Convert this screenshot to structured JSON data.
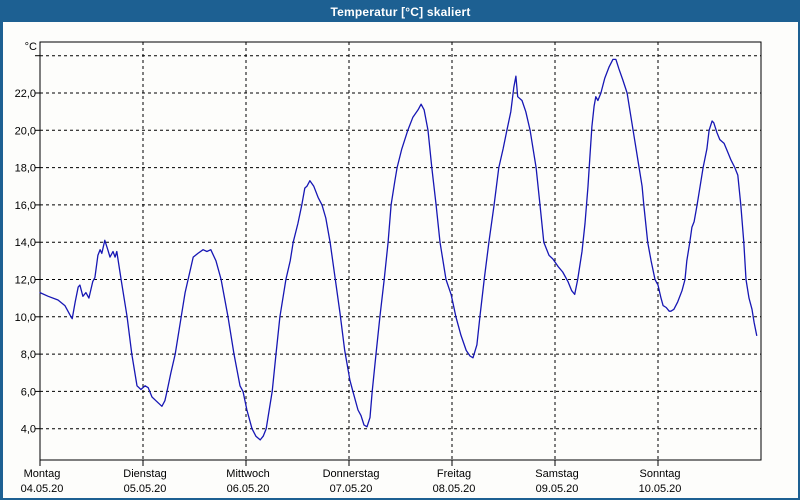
{
  "window": {
    "title": "Temperatur [°C] skaliert",
    "titlebar_color": "#1d6092",
    "border_color": "#1d6092",
    "background_color": "#fdfdfb"
  },
  "chart_data": {
    "type": "line",
    "title": "Temperatur [°C] skaliert",
    "unit_label": "°C",
    "line_color": "#1717b4",
    "grid": true,
    "grid_style": "dashed",
    "legend_position": "none",
    "y_axis": {
      "decimal_format": "comma",
      "ticks": [
        {
          "value": 24,
          "label": ""
        },
        {
          "value": 22,
          "label": "22,0"
        },
        {
          "value": 20,
          "label": "20,0"
        },
        {
          "value": 18,
          "label": "18,0"
        },
        {
          "value": 16,
          "label": "16,0"
        },
        {
          "value": 14,
          "label": "14,0"
        },
        {
          "value": 12,
          "label": "12,0"
        },
        {
          "value": 10,
          "label": "10,0"
        },
        {
          "value": 8,
          "label": "8,0"
        },
        {
          "value": 6,
          "label": "6,0"
        },
        {
          "value": 4,
          "label": "4,0"
        }
      ],
      "visible_range": [
        2.4,
        24.8
      ]
    },
    "x_axis": {
      "unit": "hours_from_monday_00",
      "range_hours": [
        0,
        168
      ],
      "days": [
        {
          "name": "Montag",
          "date": "04.05.20"
        },
        {
          "name": "Dienstag",
          "date": "05.05.20"
        },
        {
          "name": "Mittwoch",
          "date": "06.05.20"
        },
        {
          "name": "Donnerstag",
          "date": "07.05.20"
        },
        {
          "name": "Freitag",
          "date": "08.05.20"
        },
        {
          "name": "Samstag",
          "date": "09.05.20"
        },
        {
          "name": "Sonntag",
          "date": "10.05.20"
        }
      ]
    },
    "series": [
      {
        "name": "Temperatur",
        "points": [
          [
            0,
            11.3
          ],
          [
            1.9,
            11.1
          ],
          [
            4.2,
            10.9
          ],
          [
            5.8,
            10.6
          ],
          [
            7,
            10.1
          ],
          [
            7.5,
            9.9
          ],
          [
            8.2,
            10.8
          ],
          [
            8.9,
            11.6
          ],
          [
            9.3,
            11.7
          ],
          [
            10,
            11.1
          ],
          [
            10.7,
            11.3
          ],
          [
            11.4,
            11.0
          ],
          [
            12.3,
            11.9
          ],
          [
            12.8,
            12.1
          ],
          [
            13.5,
            13.3
          ],
          [
            14,
            13.6
          ],
          [
            14.4,
            13.4
          ],
          [
            15.1,
            14.1
          ],
          [
            15.8,
            13.6
          ],
          [
            16.3,
            13.2
          ],
          [
            17,
            13.5
          ],
          [
            17.5,
            13.2
          ],
          [
            17.9,
            13.5
          ],
          [
            18.9,
            12.0
          ],
          [
            20.3,
            10.0
          ],
          [
            21.4,
            8.0
          ],
          [
            22.6,
            6.3
          ],
          [
            23.5,
            6.1
          ],
          [
            24.5,
            6.3
          ],
          [
            25.2,
            6.2
          ],
          [
            26.1,
            5.7
          ],
          [
            27,
            5.5
          ],
          [
            28.4,
            5.2
          ],
          [
            29.1,
            5.5
          ],
          [
            29.6,
            6.0
          ],
          [
            30.5,
            7.0
          ],
          [
            31.5,
            8.0
          ],
          [
            32.9,
            10.0
          ],
          [
            33.8,
            11.3
          ],
          [
            34.5,
            12.0
          ],
          [
            35.7,
            13.2
          ],
          [
            36.8,
            13.4
          ],
          [
            38,
            13.6
          ],
          [
            38.9,
            13.5
          ],
          [
            39.8,
            13.6
          ],
          [
            41,
            13.0
          ],
          [
            42.2,
            12.0
          ],
          [
            43.8,
            10.0
          ],
          [
            45.2,
            8.0
          ],
          [
            46.6,
            6.3
          ],
          [
            47.3,
            6.0
          ],
          [
            48.2,
            5.0
          ],
          [
            49.4,
            4.0
          ],
          [
            50.3,
            3.6
          ],
          [
            51.3,
            3.4
          ],
          [
            52,
            3.6
          ],
          [
            52.7,
            4.0
          ],
          [
            53.4,
            5.0
          ],
          [
            54.1,
            6.0
          ],
          [
            55,
            8.0
          ],
          [
            55.9,
            10.0
          ],
          [
            57.3,
            12.0
          ],
          [
            58.3,
            13.0
          ],
          [
            59,
            14.0
          ],
          [
            60.1,
            15.0
          ],
          [
            61,
            16.0
          ],
          [
            61.7,
            16.9
          ],
          [
            62.2,
            17.0
          ],
          [
            62.9,
            17.3
          ],
          [
            63.8,
            17.0
          ],
          [
            64.8,
            16.4
          ],
          [
            65.7,
            16.0
          ],
          [
            66.6,
            15.3
          ],
          [
            67.6,
            14.0
          ],
          [
            68.7,
            12.2
          ],
          [
            69.9,
            10.2
          ],
          [
            71,
            8.2
          ],
          [
            72.2,
            6.6
          ],
          [
            72.9,
            6.0
          ],
          [
            74.1,
            5.0
          ],
          [
            74.8,
            4.7
          ],
          [
            75.5,
            4.2
          ],
          [
            76.2,
            4.1
          ],
          [
            76.9,
            4.6
          ],
          [
            77.4,
            6.0
          ],
          [
            78.3,
            8.0
          ],
          [
            79.2,
            10.0
          ],
          [
            80.2,
            12.0
          ],
          [
            81.1,
            14.0
          ],
          [
            81.8,
            16.0
          ],
          [
            82.7,
            17.3
          ],
          [
            83.2,
            18.0
          ],
          [
            84.3,
            19.0
          ],
          [
            85.7,
            20.0
          ],
          [
            86.9,
            20.7
          ],
          [
            88.1,
            21.1
          ],
          [
            88.8,
            21.4
          ],
          [
            89.5,
            21.1
          ],
          [
            90.4,
            20.0
          ],
          [
            91.3,
            18.0
          ],
          [
            92.3,
            16.0
          ],
          [
            93.2,
            14.0
          ],
          [
            94.6,
            12.0
          ],
          [
            95.8,
            11.2
          ],
          [
            96.9,
            10.0
          ],
          [
            98.1,
            9.0
          ],
          [
            99.3,
            8.2
          ],
          [
            100.2,
            7.9
          ],
          [
            100.9,
            7.8
          ],
          [
            101.8,
            8.5
          ],
          [
            102.5,
            10.0
          ],
          [
            103.5,
            12.0
          ],
          [
            104.6,
            14.0
          ],
          [
            105.8,
            16.0
          ],
          [
            106.9,
            18.0
          ],
          [
            107.9,
            19.0
          ],
          [
            108.8,
            20.0
          ],
          [
            109.7,
            21.0
          ],
          [
            110.4,
            22.3
          ],
          [
            110.9,
            22.9
          ],
          [
            111.3,
            21.8
          ],
          [
            112.3,
            21.6
          ],
          [
            113.2,
            21.0
          ],
          [
            114.2,
            20.0
          ],
          [
            115.6,
            18.0
          ],
          [
            116.5,
            16.0
          ],
          [
            117.4,
            14.0
          ],
          [
            118.6,
            13.3
          ],
          [
            119.5,
            13.1
          ],
          [
            120.7,
            12.7
          ],
          [
            121.8,
            12.4
          ],
          [
            123,
            11.9
          ],
          [
            123.9,
            11.4
          ],
          [
            124.6,
            11.2
          ],
          [
            125.3,
            12.0
          ],
          [
            126.3,
            13.5
          ],
          [
            127,
            15.0
          ],
          [
            127.7,
            17.0
          ],
          [
            128.1,
            18.5
          ],
          [
            128.6,
            20.2
          ],
          [
            129.1,
            21.3
          ],
          [
            129.5,
            21.8
          ],
          [
            130,
            21.6
          ],
          [
            130.7,
            22.0
          ],
          [
            131.6,
            22.8
          ],
          [
            132.6,
            23.4
          ],
          [
            133.5,
            23.8
          ],
          [
            134.2,
            23.8
          ],
          [
            134.9,
            23.3
          ],
          [
            135.8,
            22.7
          ],
          [
            136.8,
            22.0
          ],
          [
            137.5,
            21.0
          ],
          [
            138.2,
            20.0
          ],
          [
            138.9,
            19.0
          ],
          [
            139.6,
            18.0
          ],
          [
            140.3,
            17.0
          ],
          [
            140.7,
            16.0
          ],
          [
            141.6,
            14.0
          ],
          [
            142.4,
            13.0
          ],
          [
            143.3,
            12.0
          ],
          [
            144,
            11.7
          ],
          [
            144.7,
            11.0
          ],
          [
            145.2,
            10.6
          ],
          [
            145.9,
            10.5
          ],
          [
            146.6,
            10.3
          ],
          [
            147,
            10.3
          ],
          [
            147.7,
            10.4
          ],
          [
            148.6,
            10.8
          ],
          [
            149.6,
            11.4
          ],
          [
            150.3,
            12.0
          ],
          [
            150.7,
            13.0
          ],
          [
            151.4,
            14.0
          ],
          [
            151.9,
            14.8
          ],
          [
            152.4,
            15.1
          ],
          [
            153.1,
            16.0
          ],
          [
            153.8,
            17.0
          ],
          [
            154.5,
            18.0
          ],
          [
            155.4,
            19.0
          ],
          [
            155.9,
            20.0
          ],
          [
            156.6,
            20.5
          ],
          [
            157,
            20.4
          ],
          [
            157.7,
            19.9
          ],
          [
            158.4,
            19.5
          ],
          [
            159.4,
            19.3
          ],
          [
            160.3,
            18.8
          ],
          [
            161,
            18.4
          ],
          [
            161.9,
            18.0
          ],
          [
            162.6,
            17.6
          ],
          [
            163.3,
            16.0
          ],
          [
            164,
            14.0
          ],
          [
            164.5,
            12.0
          ],
          [
            165.2,
            11.0
          ],
          [
            165.9,
            10.4
          ],
          [
            166.4,
            9.7
          ],
          [
            167,
            9.0
          ]
        ]
      }
    ]
  }
}
